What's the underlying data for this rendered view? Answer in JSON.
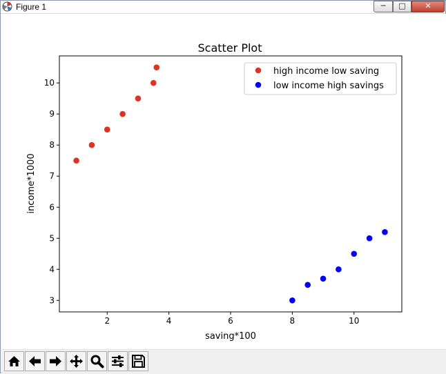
{
  "window": {
    "title": "Figure 1",
    "min_label": "─",
    "max_label": "□",
    "close_label": "✕"
  },
  "toolbar": {
    "buttons": [
      {
        "name": "home-button",
        "icon": "home-icon"
      },
      {
        "name": "back-button",
        "icon": "arrow-left-icon"
      },
      {
        "name": "forward-button",
        "icon": "arrow-right-icon"
      },
      {
        "name": "pan-button",
        "icon": "move-icon"
      },
      {
        "name": "zoom-button",
        "icon": "magnifier-icon"
      },
      {
        "name": "configure-subplots-button",
        "icon": "sliders-icon"
      },
      {
        "name": "save-button",
        "icon": "floppy-disk-icon"
      }
    ]
  },
  "chart_data": {
    "type": "scatter",
    "title": "Scatter Plot",
    "xlabel": "saving*100",
    "ylabel": "income*1000",
    "xlim": [
      0.45,
      11.55
    ],
    "ylim": [
      2.63,
      10.87
    ],
    "xticks": [
      2,
      4,
      6,
      8,
      10
    ],
    "yticks": [
      3,
      4,
      5,
      6,
      7,
      8,
      9,
      10
    ],
    "grid": false,
    "legend_position": "top-right",
    "series": [
      {
        "name": "high income low saving",
        "color": "#e03224",
        "x": [
          1,
          1.5,
          2,
          2.5,
          3,
          3.5,
          3.6
        ],
        "y": [
          7.5,
          8,
          8.5,
          9,
          9.5,
          10,
          10.5
        ]
      },
      {
        "name": "low income high savings",
        "color": "#0000ff",
        "x": [
          8,
          8.5,
          9,
          9.5,
          10,
          10.5,
          11
        ],
        "y": [
          3,
          3.5,
          3.7,
          4,
          4.5,
          5,
          5.2
        ]
      }
    ]
  }
}
